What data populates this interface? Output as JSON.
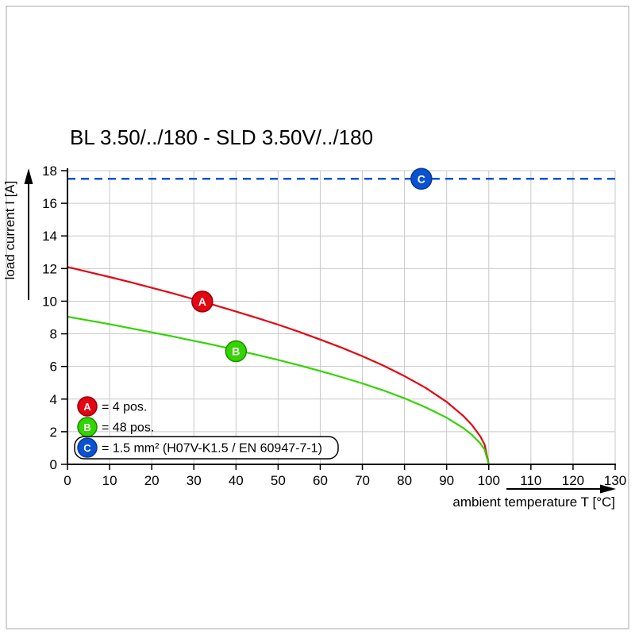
{
  "chart_data": {
    "type": "line",
    "title": "BL 3.50/../180 - SLD 3.50V/../180",
    "xlabel": "ambient temperature T [°C]",
    "ylabel": "load current I [A]",
    "xlim": [
      0,
      130
    ],
    "ylim": [
      0,
      18
    ],
    "x_ticks": [
      0,
      10,
      20,
      30,
      40,
      50,
      60,
      70,
      80,
      90,
      100,
      110,
      120,
      130
    ],
    "y_ticks": [
      0,
      2,
      4,
      6,
      8,
      10,
      12,
      14,
      16,
      18
    ],
    "grid": true,
    "grid_color": "#c9c9c9",
    "legend_position": "lower-left-inside",
    "series": [
      {
        "name": "A",
        "label": "= 4 pos.",
        "color": "#e30613",
        "edge": "#990008",
        "style": "solid",
        "marker": {
          "letter": "A",
          "x": 32,
          "y": 9.98
        },
        "x": [
          0,
          5,
          10,
          15,
          20,
          25,
          30,
          35,
          40,
          45,
          50,
          55,
          60,
          65,
          70,
          75,
          80,
          85,
          90,
          94,
          96,
          98,
          99,
          100
        ],
        "y": [
          12.1,
          11.79,
          11.48,
          11.16,
          10.82,
          10.48,
          10.12,
          9.75,
          9.37,
          8.97,
          8.56,
          8.12,
          7.65,
          7.16,
          6.63,
          6.05,
          5.41,
          4.69,
          3.83,
          2.96,
          2.42,
          1.71,
          1.21,
          0
        ]
      },
      {
        "name": "B",
        "label": "= 48 pos.",
        "color": "#33d400",
        "edge": "#1a8a00",
        "style": "solid",
        "marker": {
          "letter": "B",
          "x": 40,
          "y": 6.93
        },
        "x": [
          0,
          5,
          10,
          15,
          20,
          25,
          30,
          35,
          40,
          45,
          50,
          55,
          60,
          65,
          70,
          75,
          80,
          85,
          90,
          94,
          96,
          98,
          99,
          100
        ],
        "y": [
          9.05,
          8.82,
          8.59,
          8.34,
          8.09,
          7.84,
          7.57,
          7.3,
          7.01,
          6.71,
          6.4,
          6.07,
          5.72,
          5.35,
          4.96,
          4.53,
          4.05,
          3.5,
          2.86,
          2.22,
          1.81,
          1.28,
          0.91,
          0
        ]
      },
      {
        "name": "C",
        "label": "= 1.5 mm² (H07V-K1.5 / EN 60947-7-1)",
        "color": "#0a52d0",
        "edge": "#073a94",
        "style": "dashed",
        "boxed": true,
        "marker": {
          "letter": "C",
          "x": 84,
          "y": 17.5
        },
        "x": [
          0,
          130
        ],
        "y": [
          17.5,
          17.5
        ]
      }
    ]
  }
}
